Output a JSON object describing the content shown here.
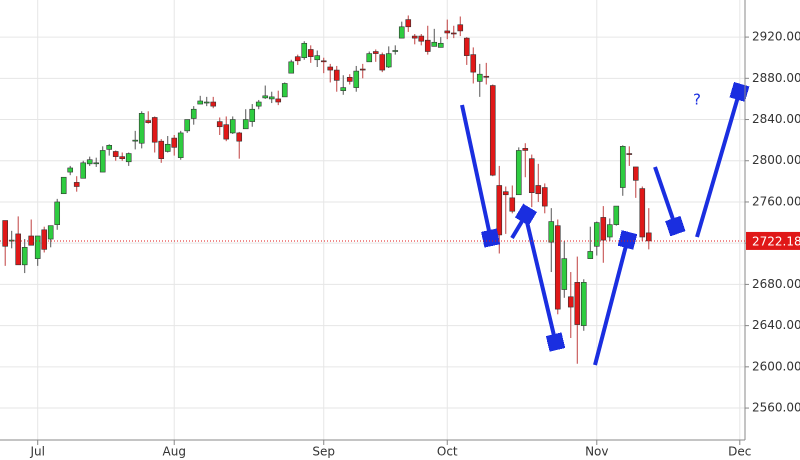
{
  "chart_data": {
    "type": "candlestick",
    "x": [
      -5,
      -4,
      -3,
      -2,
      -1,
      0,
      1,
      2,
      3,
      4,
      5,
      6,
      7,
      8,
      9,
      10,
      11,
      12,
      13,
      14,
      15,
      16,
      17,
      18,
      19,
      20,
      21,
      22,
      23,
      24,
      25,
      26,
      27,
      28,
      29,
      30,
      31,
      32,
      33,
      34,
      35,
      36,
      37,
      38,
      39,
      40,
      41,
      42,
      43,
      44,
      45,
      46,
      47,
      48,
      49,
      50,
      51,
      52,
      53,
      54,
      55,
      56,
      57,
      58,
      59,
      60,
      61,
      62,
      63,
      64,
      65,
      66,
      67,
      68,
      69,
      70,
      71,
      72,
      73,
      74,
      75,
      76,
      77,
      78,
      79,
      80,
      81,
      82,
      83,
      84,
      85,
      86,
      87,
      88,
      89,
      90,
      91,
      92,
      93,
      94
    ],
    "open": [
      2742,
      2722,
      2729,
      2699,
      2727,
      2705,
      2733,
      2724,
      2738,
      2768,
      2789,
      2779,
      2783,
      2797,
      2798,
      2789,
      2811,
      2809,
      2804,
      2799,
      2820,
      2817,
      2839,
      2842,
      2819,
      2809,
      2822,
      2803,
      2829,
      2841,
      2855,
      2856,
      2857,
      2838,
      2835,
      2827,
      2827,
      2831,
      2838,
      2853,
      2861,
      2860,
      2860,
      2862,
      2885,
      2901,
      2900,
      2908,
      2898,
      2897,
      2891,
      2888,
      2868,
      2881,
      2871,
      2889,
      2896,
      2906,
      2903,
      2891,
      2906,
      2919,
      2937,
      2921,
      2921,
      2917,
      2911,
      2910,
      2926,
      2924,
      2932,
      2919,
      2903,
      2877,
      2882,
      2873,
      2776,
      2770,
      2764,
      2767,
      2812,
      2802,
      2776,
      2774,
      2721,
      2737,
      2675,
      2668,
      2682,
      2640,
      2705,
      2717,
      2745,
      2726,
      2738,
      2774,
      2807,
      2794,
      2773,
      2730
    ],
    "high": [
      2742,
      2732,
      2746,
      2724,
      2743,
      2727,
      2736,
      2737,
      2763,
      2784,
      2795,
      2785,
      2800,
      2804,
      2803,
      2814,
      2816,
      2810,
      2808,
      2808,
      2829,
      2848,
      2848,
      2843,
      2821,
      2824,
      2825,
      2829,
      2840,
      2853,
      2863,
      2862,
      2862,
      2842,
      2843,
      2843,
      2828,
      2850,
      2855,
      2859,
      2873,
      2867,
      2868,
      2876,
      2898,
      2903,
      2916,
      2912,
      2907,
      2900,
      2894,
      2892,
      2883,
      2884,
      2892,
      2894,
      2906,
      2908,
      2905,
      2911,
      2912,
      2935,
      2941,
      2923,
      2923,
      2931,
      2928,
      2920,
      2937,
      2931,
      2940,
      2920,
      2910,
      2894,
      2895,
      2874,
      2795,
      2775,
      2776,
      2813,
      2817,
      2806,
      2797,
      2778,
      2754,
      2743,
      2722,
      2692,
      2707,
      2685,
      2736,
      2741,
      2756,
      2744,
      2756,
      2815,
      2814,
      2794,
      2775,
      2754
    ],
    "low": [
      2698,
      2715,
      2699,
      2691,
      2718,
      2698,
      2711,
      2716,
      2733,
      2768,
      2786,
      2770,
      2783,
      2795,
      2794,
      2789,
      2805,
      2800,
      2800,
      2795,
      2811,
      2812,
      2836,
      2808,
      2798,
      2808,
      2805,
      2801,
      2827,
      2835,
      2855,
      2853,
      2851,
      2825,
      2819,
      2826,
      2802,
      2831,
      2833,
      2850,
      2860,
      2856,
      2854,
      2862,
      2885,
      2893,
      2898,
      2895,
      2891,
      2885,
      2876,
      2867,
      2864,
      2874,
      2867,
      2880,
      2896,
      2896,
      2886,
      2890,
      2903,
      2919,
      2925,
      2913,
      2912,
      2903,
      2911,
      2910,
      2918,
      2919,
      2921,
      2893,
      2875,
      2862,
      2874,
      2785,
      2710,
      2729,
      2749,
      2767,
      2784,
      2755,
      2760,
      2749,
      2692,
      2651,
      2667,
      2628,
      2603,
      2635,
      2705,
      2708,
      2701,
      2722,
      2737,
      2766,
      2795,
      2764,
      2722,
      2714
    ],
    "close": [
      2717,
      2723,
      2699,
      2716,
      2718,
      2727,
      2714,
      2737,
      2760,
      2784,
      2793,
      2775,
      2798,
      2801,
      2798,
      2810,
      2815,
      2804,
      2802,
      2807,
      2820,
      2846,
      2837,
      2818,
      2802,
      2816,
      2813,
      2827,
      2840,
      2850,
      2858,
      2857,
      2853,
      2833,
      2821,
      2840,
      2819,
      2840,
      2850,
      2857,
      2863,
      2862,
      2857,
      2875,
      2896,
      2897,
      2914,
      2901,
      2902,
      2896,
      2888,
      2878,
      2871,
      2877,
      2887,
      2888,
      2904,
      2904,
      2888,
      2904,
      2907,
      2930,
      2930,
      2919,
      2916,
      2906,
      2915,
      2914,
      2924,
      2923,
      2926,
      2902,
      2886,
      2884,
      2881,
      2786,
      2728,
      2767,
      2751,
      2810,
      2810,
      2769,
      2768,
      2756,
      2741,
      2656,
      2705,
      2658,
      2641,
      2682,
      2712,
      2740,
      2723,
      2738,
      2756,
      2814,
      2806,
      2781,
      2726,
      2722.18
    ],
    "up_color": "#2ecc40",
    "down_color": "#e01818",
    "xlim": [
      -5.8,
      108.8
    ],
    "xticks": [
      {
        "value": 0,
        "label": "Jul"
      },
      {
        "value": 21,
        "label": "Aug"
      },
      {
        "value": 44,
        "label": "Sep"
      },
      {
        "value": 63,
        "label": "Oct"
      },
      {
        "value": 86,
        "label": "Nov"
      },
      {
        "value": 108,
        "label": "Dec"
      }
    ],
    "ylim": [
      2529,
      2956
    ],
    "yticks": [
      {
        "value": 2560,
        "label": "2560.00"
      },
      {
        "value": 2600,
        "label": "2600.00"
      },
      {
        "value": 2640,
        "label": "2640.00"
      },
      {
        "value": 2680,
        "label": "2680.00"
      },
      {
        "value": 2720,
        "label": "2720.00"
      },
      {
        "value": 2760,
        "label": "2760.00"
      },
      {
        "value": 2800,
        "label": "2800.00"
      },
      {
        "value": 2840,
        "label": "2840.00"
      },
      {
        "value": 2880,
        "label": "2880.00"
      },
      {
        "value": 2920,
        "label": "2920.00"
      }
    ],
    "last_price": 2722.18,
    "annotation": "?",
    "grid": true
  }
}
